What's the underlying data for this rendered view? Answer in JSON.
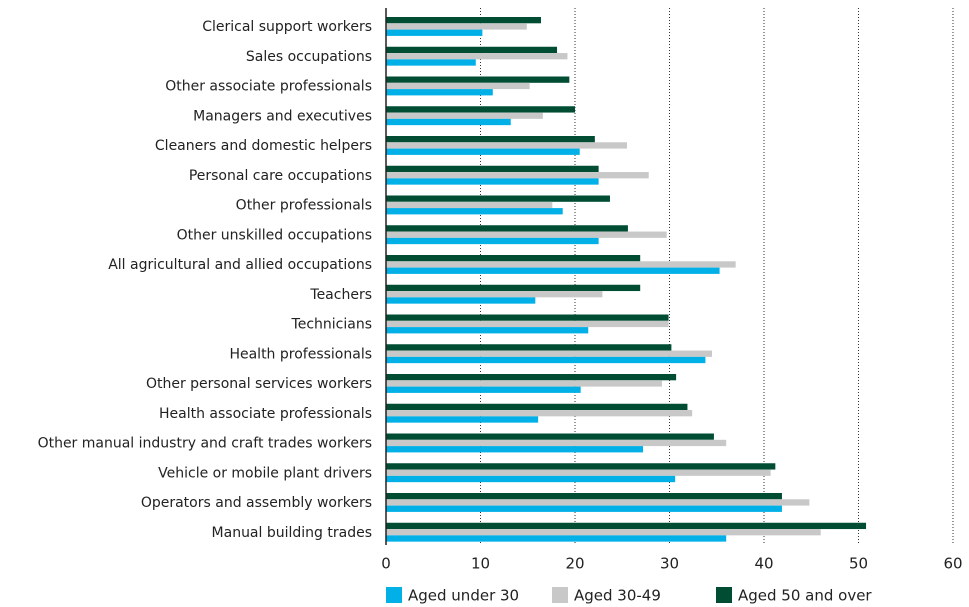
{
  "chart_data": {
    "type": "hbar",
    "categories": [
      "Clerical support workers",
      "Sales occupations",
      "Other associate professionals",
      "Managers and executives",
      "Cleaners and domestic helpers",
      "Personal care occupations",
      "Other professionals",
      "Other unskilled occupations",
      "All agricultural and allied occupations",
      "Teachers",
      "Technicians",
      "Health professionals",
      "Other personal services workers",
      "Health associate professionals",
      "Other manual industry and craft trades workers",
      "Vehicle or mobile plant drivers",
      "Operators and assembly workers",
      "Manual building trades"
    ],
    "series": [
      {
        "name": "Aged under 30",
        "color": "#00b0e6",
        "values": [
          10.2,
          9.5,
          11.3,
          13.2,
          20.5,
          22.5,
          18.7,
          22.5,
          35.3,
          15.8,
          21.4,
          33.8,
          20.6,
          16.1,
          27.2,
          30.6,
          41.9,
          36.0
        ]
      },
      {
        "name": "Aged 30-49",
        "color": "#c8c8c8",
        "values": [
          14.9,
          19.2,
          15.2,
          16.6,
          25.5,
          27.8,
          17.6,
          29.7,
          37.0,
          22.9,
          29.9,
          34.5,
          29.2,
          32.4,
          36.0,
          40.7,
          44.8,
          46.0
        ]
      },
      {
        "name": "Aged 50 and over",
        "color": "#004d33",
        "values": [
          16.4,
          18.1,
          19.4,
          20.0,
          22.1,
          22.5,
          23.7,
          25.6,
          26.9,
          26.9,
          29.9,
          30.2,
          30.7,
          31.9,
          34.7,
          41.2,
          41.9,
          50.8
        ]
      }
    ],
    "xlim": [
      0,
      60
    ],
    "xticks": [
      0,
      10,
      20,
      30,
      40,
      50,
      60
    ],
    "grid": true
  }
}
